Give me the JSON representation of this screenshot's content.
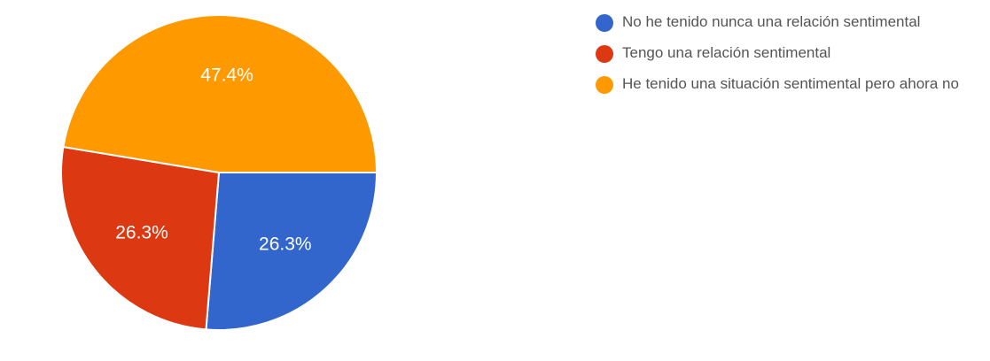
{
  "chart_data": {
    "type": "pie",
    "categories": [
      "No he tenido nunca una relación sentimental",
      "Tengo una relación sentimental",
      "He tenido una situación sentimental pero ahora no"
    ],
    "values": [
      26.3,
      26.3,
      47.4
    ],
    "value_labels": [
      "26.3%",
      "26.3%",
      "47.4%"
    ],
    "colors": [
      "#3366cc",
      "#dc3912",
      "#ff9900"
    ],
    "legend_position": "right",
    "start_angle_deg": 90,
    "direction": "clockwise"
  }
}
